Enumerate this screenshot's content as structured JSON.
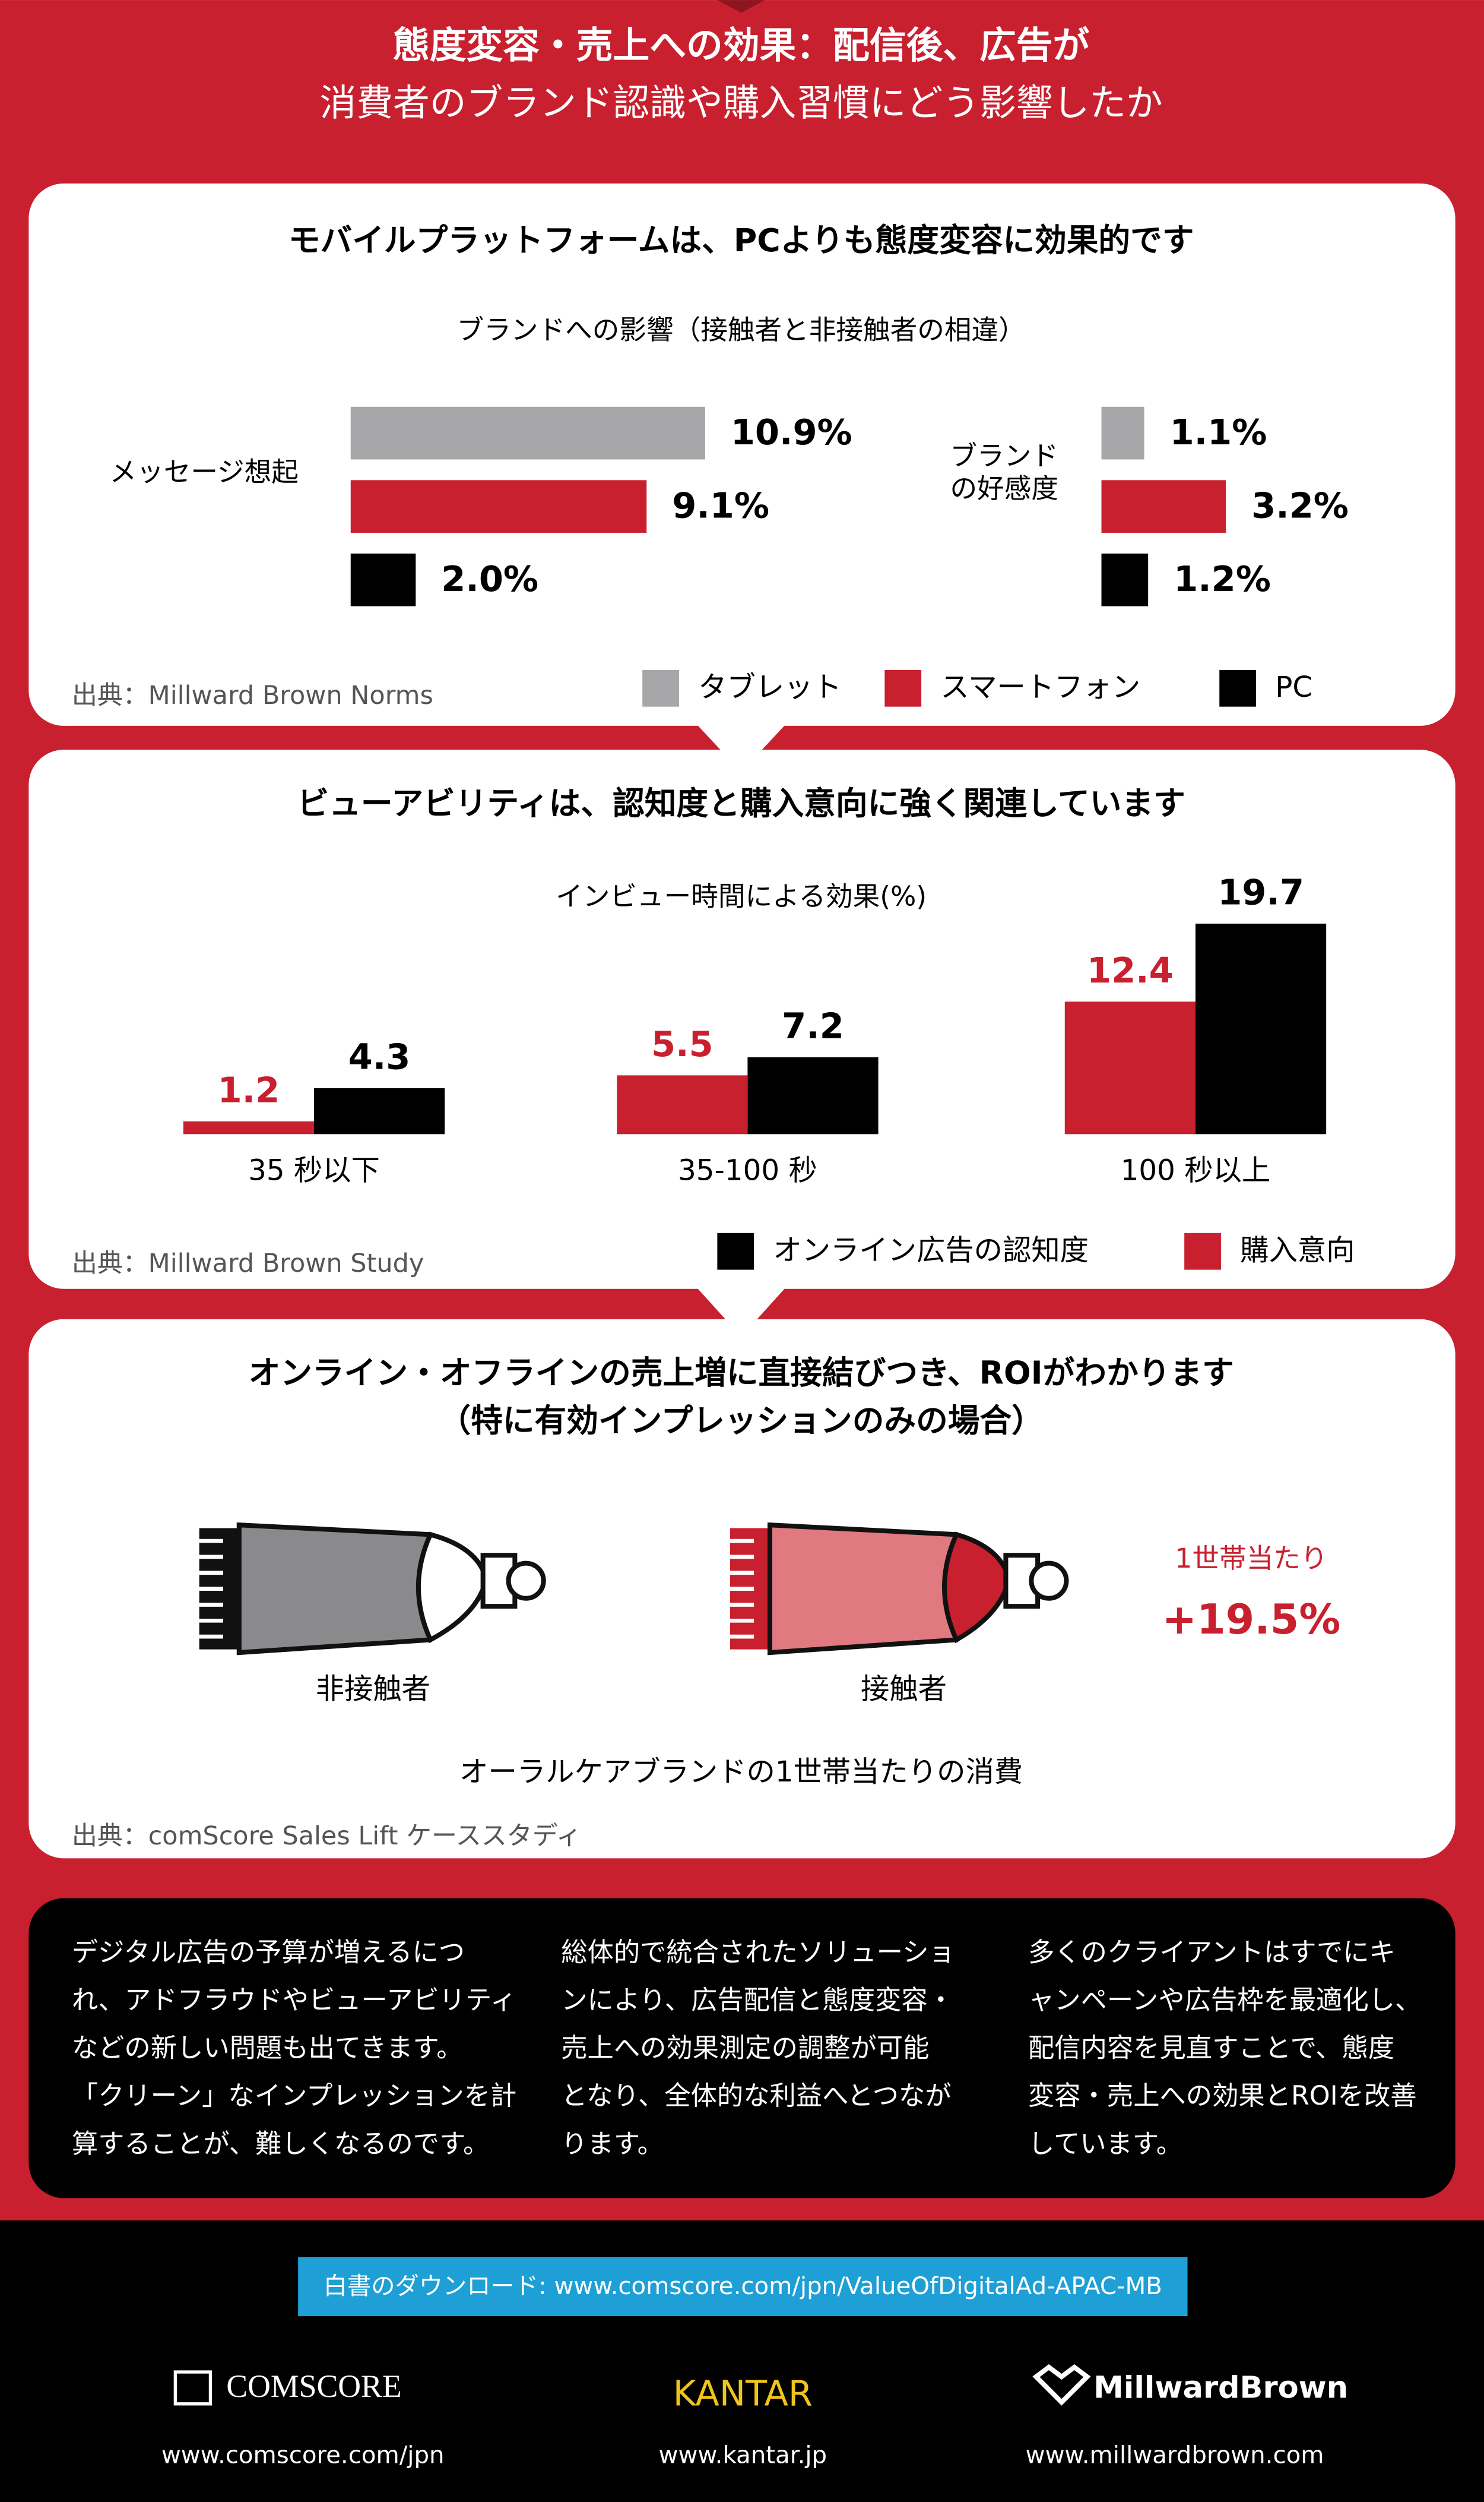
{
  "header": {
    "title_lines": [
      "態度変容・売上への効果：配信後、広告が",
      "消費者のブランド認識や購入習慣にどう影響したか"
    ]
  },
  "chart_data": [
    {
      "type": "bar",
      "orientation": "horizontal",
      "title": "モバイルプラットフォームは、PCよりも態度変容に効果的です",
      "subtitle": "ブランドへの影響（接触者と非接触者の相違）",
      "categories": [
        "メッセージ想起",
        "ブランド\nの好感度"
      ],
      "series": [
        {
          "name": "タブレット",
          "color": "#a7a7a9",
          "values": [
            10.9,
            1.1
          ],
          "value_labels": [
            "10.9%",
            "1.1%"
          ]
        },
        {
          "name": "スマートフォン",
          "color": "#c8202f",
          "values": [
            9.1,
            3.2
          ],
          "value_labels": [
            "9.1%",
            "3.2%"
          ]
        },
        {
          "name": "PC",
          "color": "#000000",
          "values": [
            2.0,
            1.2
          ],
          "value_labels": [
            "2.0%",
            "1.2%"
          ]
        }
      ],
      "source": "出典：Millward Brown Norms"
    },
    {
      "type": "bar",
      "orientation": "vertical",
      "title": "ビューアビリティは、認知度と購入意向に強く関連しています",
      "subtitle": "インビュー時間による効果(%)",
      "categories": [
        "35 秒以下",
        "35-100 秒",
        "100 秒以上"
      ],
      "series": [
        {
          "name": "オンライン広告の認知度",
          "color": "#000000",
          "values": [
            4.3,
            7.2,
            19.7
          ]
        },
        {
          "name": "購入意向",
          "color": "#c8202f",
          "values": [
            1.2,
            5.5,
            12.4
          ]
        }
      ],
      "source": "出典：Millward Brown Study"
    }
  ],
  "sales_section": {
    "title_lines": [
      "オンライン・オフラインの売上増に直接結びつき、ROIがわかります",
      "（特に有効インプレッションのみの場合）"
    ],
    "groups": [
      "非接触者",
      "接触者"
    ],
    "lift_label": "1世帯当たり",
    "lift_value": "+19.5%",
    "caption": "オーラルケアブランドの1世帯当たりの消費",
    "source": "出典：comScore Sales Lift ケーススタディ"
  },
  "notes": [
    [
      "デジタル広告の予算が増えるにつ",
      "れ、アドフラウドやビューアビリティ",
      "などの新しい問題も出てきます。",
      "「クリーン」なインプレッションを計",
      "算することが、難しくなるのです。"
    ],
    [
      "総体的で統合されたソリューショ",
      "ンにより、広告配信と態度変容・",
      "売上への効果測定の調整が可能",
      "となり、全体的な利益へとつなが",
      "ります。"
    ],
    [
      "多くのクライアントはすでにキ",
      "ャンペーンや広告枠を最適化し、",
      "配信内容を見直すことで、態度",
      "変容・売上への効果とROIを改善",
      "しています。"
    ]
  ],
  "footer": {
    "download": "白書のダウンロード: www.comscore.com/jpn/ValueOfDigitalAd-APAC-MB",
    "logos": [
      "COMSCORE",
      "KANTAR",
      "MillwardBrown"
    ],
    "urls": [
      "www.comscore.com/jpn",
      "www.kantar.jp",
      "www.millwardbrown.com"
    ]
  }
}
